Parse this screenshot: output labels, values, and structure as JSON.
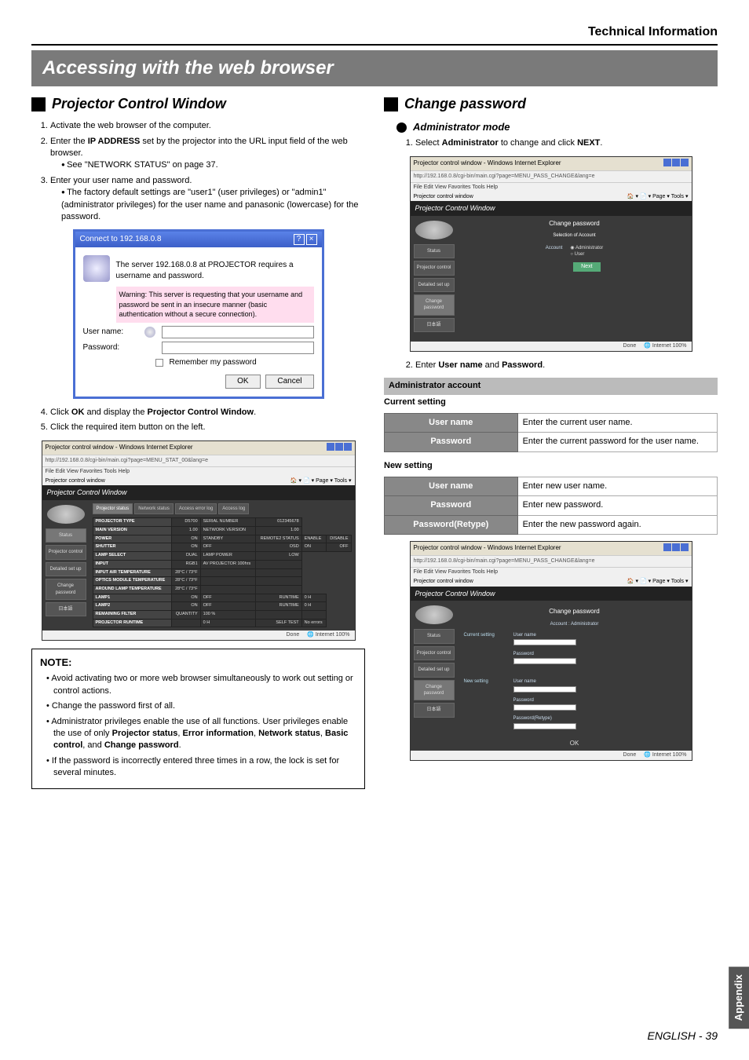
{
  "header": {
    "section": "Technical Information"
  },
  "banner": "Accessing with the web browser",
  "left": {
    "h2": "Projector Control Window",
    "steps_a": [
      "Activate the web browser of the computer.",
      "Enter the <b>IP ADDRESS</b> set by the projector into the URL input field of the web browser.",
      "Enter your user name and password."
    ],
    "step2_sub": "See \"NETWORK STATUS\" on page 37.",
    "step3_sub": "The factory default settings are \"user1\" (user privileges) or \"admin1\" (administrator privileges) for the user name and panasonic (lowercase) for the password.",
    "login": {
      "title": "Connect to 192.168.0.8",
      "msg": "The server 192.168.0.8 at PROJECTOR requires a username and password.",
      "warn": "Warning: This server is requesting that your username and password be sent in an insecure manner (basic authentication without a secure connection).",
      "user_lbl": "User name:",
      "pass_lbl": "Password:",
      "remember": "Remember my password",
      "ok": "OK",
      "cancel": "Cancel"
    },
    "steps_b": [
      "Click <b>OK</b> and display the <b>Projector Control Window</b>.",
      "Click the required item button on the left."
    ],
    "browser1": {
      "wintitle": "Projector control window - Windows Internet Explorer",
      "url": "http://192.168.0.8/cgi-bin/main.cgi?page=MENU_STAT_00&lang=e",
      "menus": "File   Edit   View   Favorites   Tools   Help",
      "hdr": "Projector Control Window",
      "nav": [
        "Status",
        "Projector control",
        "Detailed set up",
        "Change password",
        "日本語"
      ],
      "tabs": [
        "Projector status",
        "Network status",
        "Access error log",
        "Access log"
      ],
      "rows": [
        [
          "PROJECTOR TYPE",
          "D5700",
          "SERIAL NUMBER",
          "012345678"
        ],
        [
          "MAIN VERSION",
          "1.00",
          "NETWORK VERSION",
          "1.00"
        ],
        [
          "POWER",
          "ON",
          "STANDBY",
          "REMOTE2 STATUS",
          "ENABLE",
          "DISABLE"
        ],
        [
          "SHUTTER",
          "ON",
          "OFF",
          "OSD",
          "ON",
          "OFF"
        ],
        [
          "LAMP SELECT",
          "DUAL",
          "LAMP POWER",
          "LOW"
        ],
        [
          "INPUT",
          "RGB1",
          "AV PROJECTOR 100hrs",
          ""
        ],
        [
          "INPUT AIR TEMPERATURE",
          "28°C / 73°F",
          "",
          ""
        ],
        [
          "OPTICS MODULE TEMPERATURE",
          "28°C / 73°F",
          "",
          ""
        ],
        [
          "AROUND LAMP TEMPERATURE",
          "28°C / 73°F",
          "",
          ""
        ],
        [
          "LAMP1",
          "ON",
          "OFF",
          "RUNTIME",
          "0 H"
        ],
        [
          "LAMP2",
          "ON",
          "OFF",
          "RUNTIME",
          "0 H"
        ],
        [
          "REMAINING FILTER",
          "QUANTITY",
          "100 %",
          "",
          ""
        ],
        [
          "PROJECTOR RUNTIME",
          "",
          "0 H",
          "SELF TEST",
          "No errors"
        ]
      ],
      "statusbar_left": "Done",
      "statusbar_right": "Internet        100%"
    },
    "note": {
      "title": "NOTE:",
      "items": [
        "Avoid activating two or more web browser simultaneously to work out setting or control actions.",
        "Change the password first of all.",
        "Administrator privileges enable the use of all functions. User privileges enable the use of only <b>Projector status</b>, <b>Error information</b>, <b>Network status</b>, <b>Basic control</b>, and <b>Change password</b>.",
        "If the password is incorrectly entered three times in a row, the lock is set for several minutes."
      ]
    }
  },
  "right": {
    "h2": "Change password",
    "h3": "Administrator mode",
    "step1": "Select <b>Administrator</b> to change and click <b>NEXT</b>.",
    "browser2": {
      "wintitle": "Projector control window - Windows Internet Explorer",
      "hdr": "Projector Control Window",
      "nav": [
        "Status",
        "Projector control",
        "Detailed set up",
        "Change password",
        "日本語"
      ],
      "center_hdr": "Change password",
      "sub": "Selection of Account",
      "acct_lbl": "Account",
      "opt1": "Administrator",
      "opt2": "User",
      "next": "Next"
    },
    "step2": "Enter <b>User name</b> and <b>Password</b>.",
    "table": {
      "group": "Administrator account",
      "cur": "Current setting",
      "cur_rows": [
        [
          "User name",
          "Enter the current user name."
        ],
        [
          "Password",
          "Enter the current password for the user name."
        ]
      ],
      "new": "New setting",
      "new_rows": [
        [
          "User name",
          "Enter new user name."
        ],
        [
          "Password",
          "Enter new password."
        ],
        [
          "Password(Retype)",
          "Enter the new password again."
        ]
      ]
    },
    "browser3": {
      "wintitle": "Projector control window - Windows Internet Explorer",
      "hdr": "Projector Control Window",
      "nav": [
        "Status",
        "Projector control",
        "Detailed set up",
        "Change password",
        "日本語"
      ],
      "center_hdr": "Change password",
      "acct_line": "Account : Administrator",
      "cur_lbl": "Current setting",
      "new_lbl": "New setting",
      "fields_cur": [
        "User name",
        "Password"
      ],
      "fields_new": [
        "User name",
        "Password",
        "Password(Retype)"
      ],
      "ok": "OK"
    }
  },
  "sidetab": "Appendix",
  "footer": {
    "lang": "ENGLISH",
    "page": "- 39"
  }
}
